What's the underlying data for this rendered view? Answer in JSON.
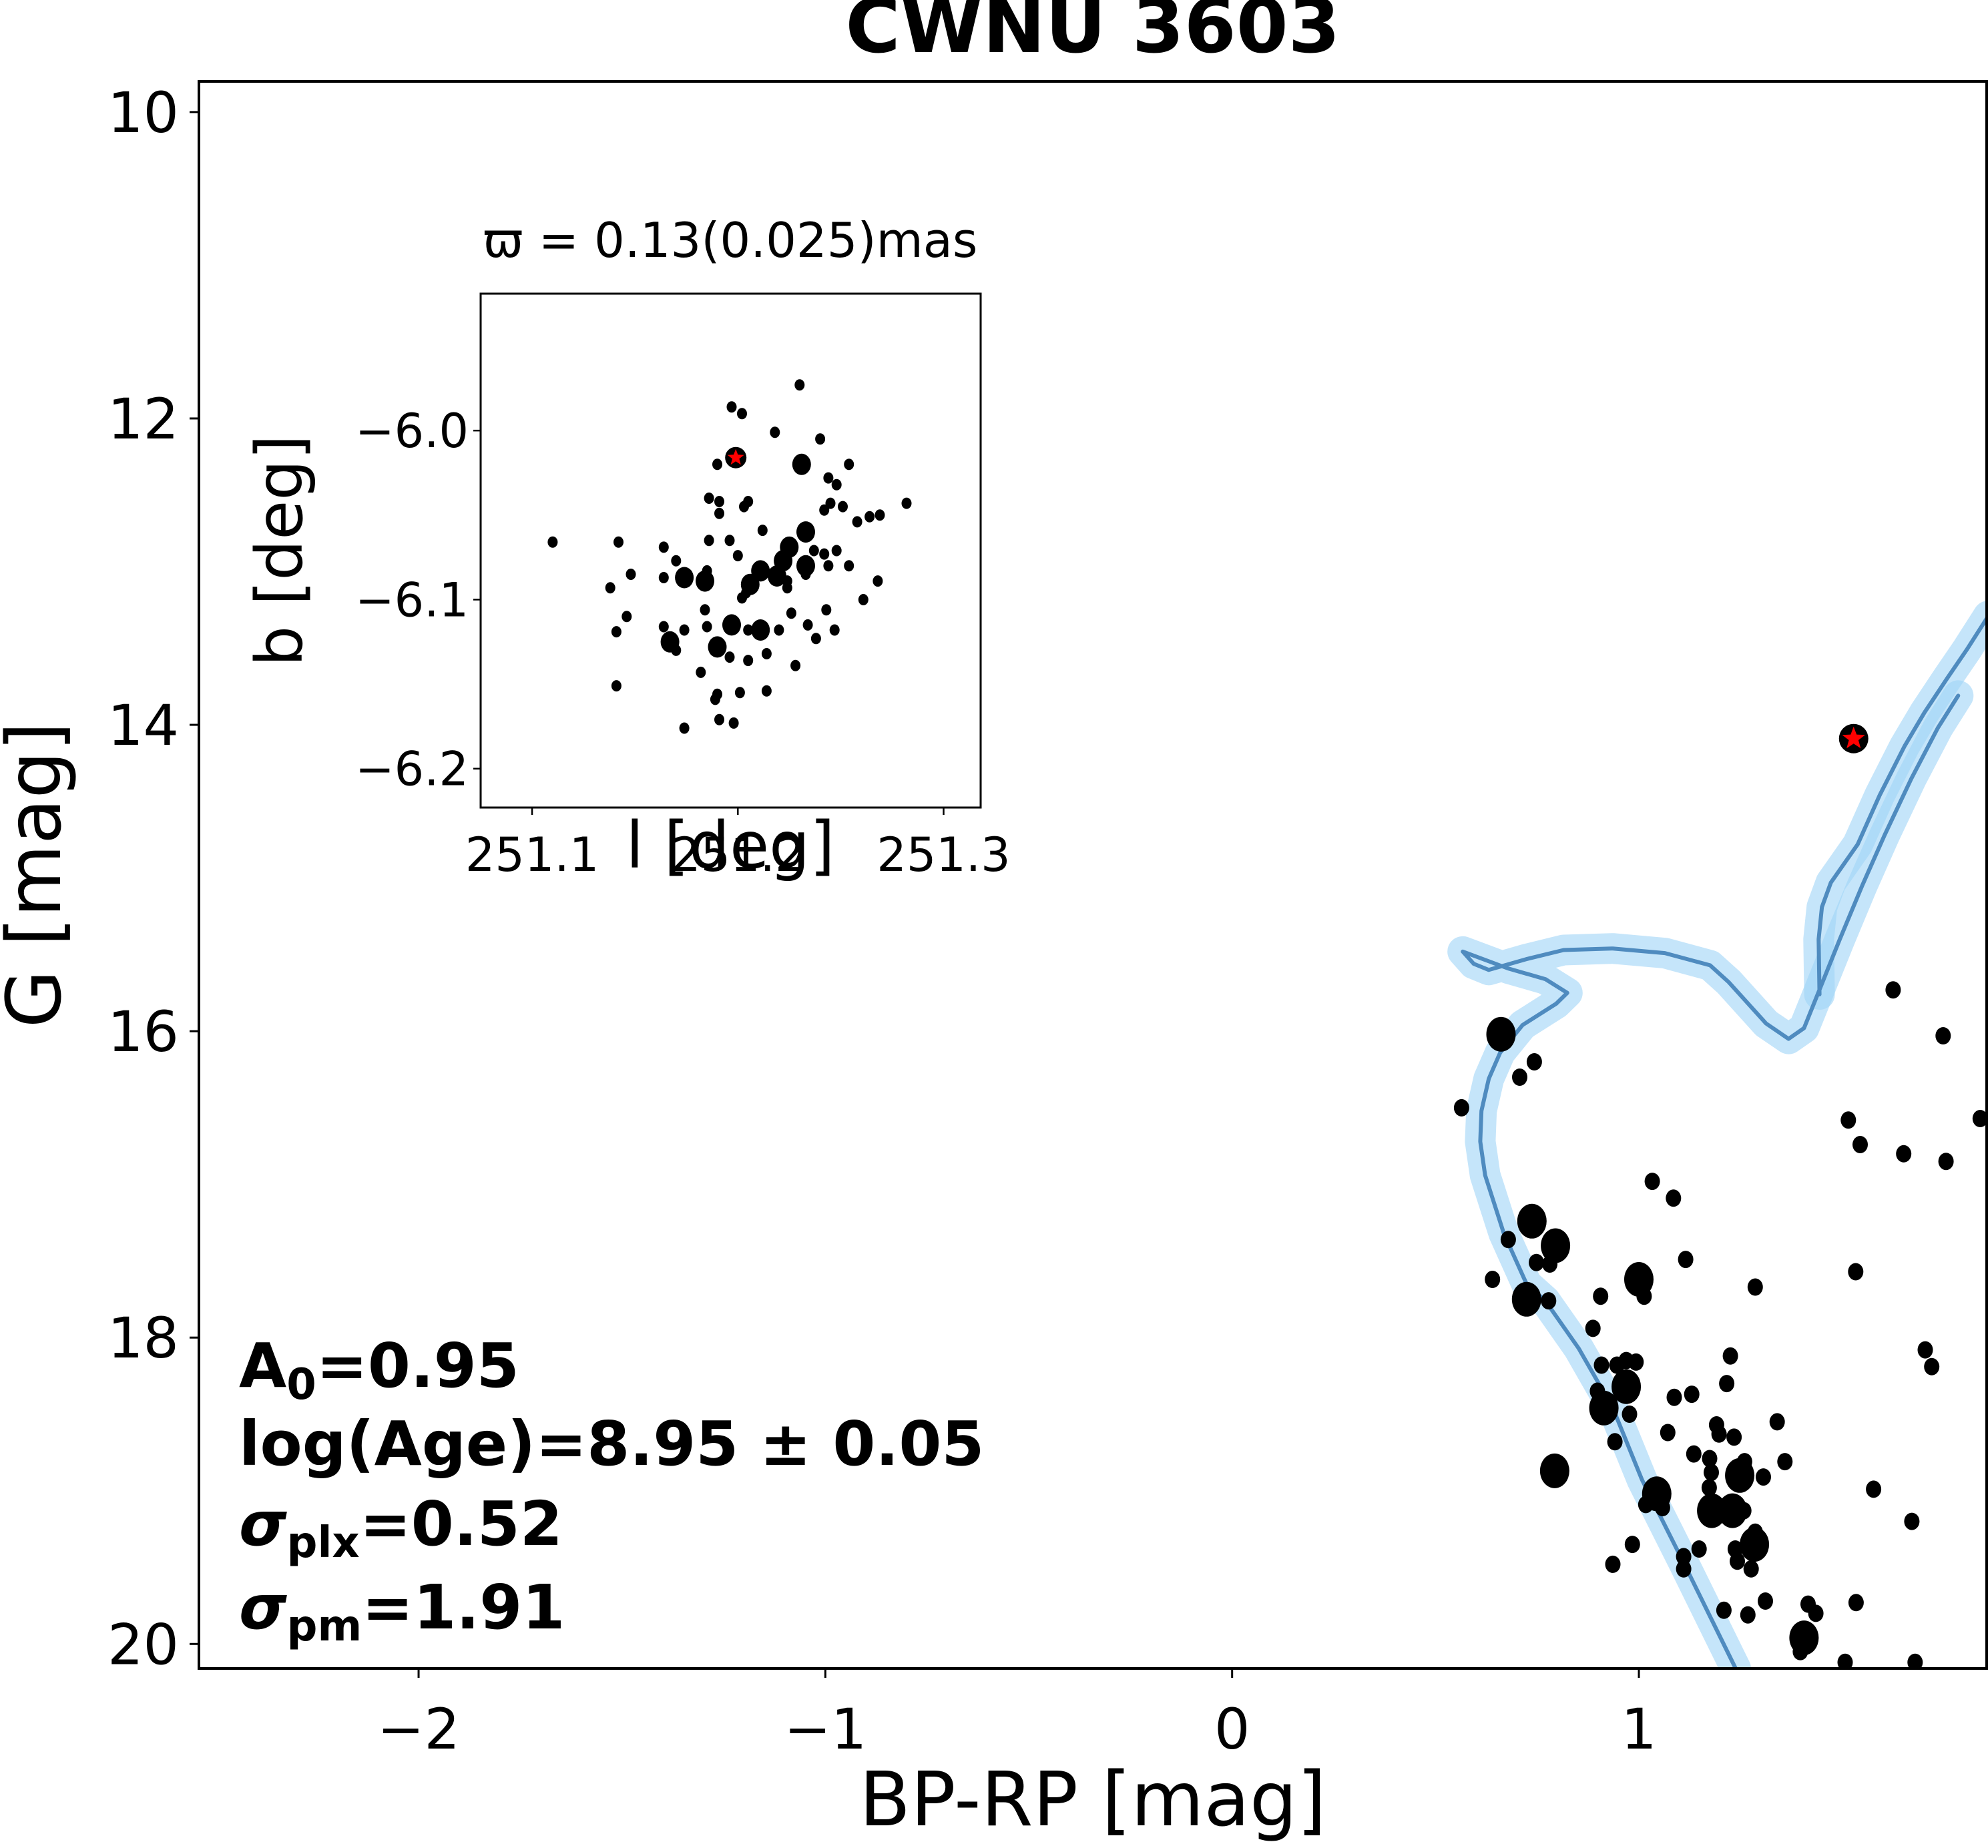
{
  "chart_data": [
    {
      "id": "cmd",
      "type": "scatter",
      "title": "CWNU 3603",
      "xlabel": "BP-RP [mag]",
      "ylabel": "G [mag]",
      "xlim": [
        -2.54,
        1.855
      ],
      "ylim": [
        20.16,
        9.8
      ],
      "y_inverted": true,
      "xticks": [
        -2,
        -1,
        0,
        1
      ],
      "xtick_labels": [
        "−2",
        "−1",
        "0",
        "1"
      ],
      "yticks": [
        10,
        12,
        14,
        16,
        18,
        20
      ],
      "ytick_labels": [
        "10",
        "12",
        "14",
        "16",
        "18",
        "20"
      ],
      "grid": false,
      "annotations": {
        "A0": {
          "label": "A",
          "sub": "0",
          "value": "=0.95"
        },
        "logAge": {
          "text": "log(Age)=8.95 ± 0.05"
        },
        "sigma_plx": {
          "label": "σ",
          "sub": "plx",
          "value": "=0.52"
        },
        "sigma_pm": {
          "label": "σ",
          "sub": "pm",
          "value": "=1.91"
        }
      },
      "colors": {
        "points": "#000000",
        "isochrone": "#4f8bbf",
        "band": "#9fd3f7",
        "highlight": "#ff0000"
      },
      "points": [
        {
          "x": 0.661,
          "y": 16.02,
          "s": "L"
        },
        {
          "x": 0.743,
          "y": 16.2,
          "s": "S"
        },
        {
          "x": 0.707,
          "y": 16.3,
          "s": "S"
        },
        {
          "x": 0.564,
          "y": 16.5,
          "s": "S"
        },
        {
          "x": 1.625,
          "y": 15.73,
          "s": "S"
        },
        {
          "x": 1.748,
          "y": 16.03,
          "s": "S"
        },
        {
          "x": 1.515,
          "y": 16.58,
          "s": "S"
        },
        {
          "x": 1.839,
          "y": 16.57,
          "s": "S"
        },
        {
          "x": 1.544,
          "y": 16.74,
          "s": "S"
        },
        {
          "x": 1.651,
          "y": 16.8,
          "s": "S"
        },
        {
          "x": 1.755,
          "y": 16.85,
          "s": "S"
        },
        {
          "x": 1.033,
          "y": 16.98,
          "s": "S"
        },
        {
          "x": 1.085,
          "y": 17.09,
          "s": "S"
        },
        {
          "x": 0.737,
          "y": 17.24,
          "s": "L"
        },
        {
          "x": 0.679,
          "y": 17.36,
          "s": "S"
        },
        {
          "x": 0.795,
          "y": 17.4,
          "s": "L"
        },
        {
          "x": 0.748,
          "y": 17.51,
          "s": "S"
        },
        {
          "x": 0.781,
          "y": 17.52,
          "s": "S"
        },
        {
          "x": 1.115,
          "y": 17.49,
          "s": "S"
        },
        {
          "x": 0.64,
          "y": 17.62,
          "s": "S"
        },
        {
          "x": 1.0,
          "y": 17.62,
          "s": "L"
        },
        {
          "x": 1.013,
          "y": 17.73,
          "s": "S"
        },
        {
          "x": 1.286,
          "y": 17.67,
          "s": "S"
        },
        {
          "x": 1.533,
          "y": 17.57,
          "s": "S"
        },
        {
          "x": 0.724,
          "y": 17.75,
          "s": "L"
        },
        {
          "x": 0.778,
          "y": 17.76,
          "s": "S"
        },
        {
          "x": 0.906,
          "y": 17.73,
          "s": "S"
        },
        {
          "x": 0.887,
          "y": 17.94,
          "s": "S"
        },
        {
          "x": 1.704,
          "y": 18.08,
          "s": "S"
        },
        {
          "x": 1.72,
          "y": 18.19,
          "s": "S"
        },
        {
          "x": 1.225,
          "y": 18.12,
          "s": "S"
        },
        {
          "x": 0.908,
          "y": 18.18,
          "s": "S"
        },
        {
          "x": 0.946,
          "y": 18.18,
          "s": "S"
        },
        {
          "x": 0.969,
          "y": 18.15,
          "s": "S"
        },
        {
          "x": 0.993,
          "y": 18.16,
          "s": "S"
        },
        {
          "x": 0.969,
          "y": 18.32,
          "s": "L"
        },
        {
          "x": 0.898,
          "y": 18.35,
          "s": "S"
        },
        {
          "x": 0.914,
          "y": 18.46,
          "s": "L"
        },
        {
          "x": 0.977,
          "y": 18.5,
          "s": "S"
        },
        {
          "x": 1.087,
          "y": 18.39,
          "s": "S"
        },
        {
          "x": 1.13,
          "y": 18.37,
          "s": "S"
        },
        {
          "x": 1.216,
          "y": 18.3,
          "s": "S"
        },
        {
          "x": 1.34,
          "y": 18.55,
          "s": "S"
        },
        {
          "x": 1.071,
          "y": 18.62,
          "s": "S"
        },
        {
          "x": 1.191,
          "y": 18.57,
          "s": "S"
        },
        {
          "x": 1.197,
          "y": 18.63,
          "s": "S"
        },
        {
          "x": 1.234,
          "y": 18.65,
          "s": "S"
        },
        {
          "x": 0.941,
          "y": 18.68,
          "s": "S"
        },
        {
          "x": 1.135,
          "y": 18.76,
          "s": "S"
        },
        {
          "x": 1.174,
          "y": 18.79,
          "s": "S"
        },
        {
          "x": 1.26,
          "y": 18.81,
          "s": "S"
        },
        {
          "x": 1.359,
          "y": 18.81,
          "s": "S"
        },
        {
          "x": 0.793,
          "y": 18.87,
          "s": "L"
        },
        {
          "x": 1.178,
          "y": 18.88,
          "s": "S"
        },
        {
          "x": 1.248,
          "y": 18.9,
          "s": "L"
        },
        {
          "x": 1.306,
          "y": 18.91,
          "s": "S"
        },
        {
          "x": 1.577,
          "y": 18.99,
          "s": "S"
        },
        {
          "x": 1.173,
          "y": 18.98,
          "s": "S"
        },
        {
          "x": 1.044,
          "y": 19.02,
          "s": "L"
        },
        {
          "x": 1.017,
          "y": 19.09,
          "s": "S"
        },
        {
          "x": 1.058,
          "y": 19.11,
          "s": "S"
        },
        {
          "x": 1.179,
          "y": 19.13,
          "s": "L"
        },
        {
          "x": 1.23,
          "y": 19.13,
          "s": "L"
        },
        {
          "x": 1.258,
          "y": 19.13,
          "s": "S"
        },
        {
          "x": 1.671,
          "y": 19.2,
          "s": "S"
        },
        {
          "x": 1.286,
          "y": 19.27,
          "s": "S"
        },
        {
          "x": 1.284,
          "y": 19.35,
          "s": "L"
        },
        {
          "x": 1.237,
          "y": 19.38,
          "s": "S"
        },
        {
          "x": 0.984,
          "y": 19.35,
          "s": "S"
        },
        {
          "x": 1.148,
          "y": 19.38,
          "s": "S"
        },
        {
          "x": 1.11,
          "y": 19.43,
          "s": "S"
        },
        {
          "x": 1.242,
          "y": 19.46,
          "s": "S"
        },
        {
          "x": 0.936,
          "y": 19.48,
          "s": "S"
        },
        {
          "x": 1.11,
          "y": 19.51,
          "s": "S"
        },
        {
          "x": 1.276,
          "y": 19.51,
          "s": "S"
        },
        {
          "x": 1.311,
          "y": 19.72,
          "s": "S"
        },
        {
          "x": 1.209,
          "y": 19.78,
          "s": "S"
        },
        {
          "x": 1.268,
          "y": 19.81,
          "s": "S"
        },
        {
          "x": 1.416,
          "y": 19.74,
          "s": "S"
        },
        {
          "x": 1.435,
          "y": 19.8,
          "s": "S"
        },
        {
          "x": 1.534,
          "y": 19.73,
          "s": "S"
        },
        {
          "x": 1.406,
          "y": 19.96,
          "s": "L"
        },
        {
          "x": 1.397,
          "y": 20.05,
          "s": "S"
        },
        {
          "x": 1.507,
          "y": 20.12,
          "s": "S"
        },
        {
          "x": 1.679,
          "y": 20.12,
          "s": "S"
        }
      ],
      "highlight_star": {
        "x": 1.528,
        "y": 14.09
      },
      "isochrone": [
        [
          1.238,
          20.16
        ],
        [
          1.11,
          19.47
        ],
        [
          1.008,
          18.93
        ],
        [
          0.936,
          18.46
        ],
        [
          0.852,
          18.07
        ],
        [
          0.77,
          17.76
        ],
        [
          0.724,
          17.65
        ],
        [
          0.668,
          17.32
        ],
        [
          0.622,
          16.94
        ],
        [
          0.61,
          16.72
        ],
        [
          0.613,
          16.52
        ],
        [
          0.631,
          16.31
        ],
        [
          0.659,
          16.14
        ],
        [
          0.714,
          15.96
        ],
        [
          0.797,
          15.82
        ],
        [
          0.824,
          15.75
        ],
        [
          0.77,
          15.66
        ],
        [
          0.678,
          15.59
        ],
        [
          0.567,
          15.48
        ],
        [
          0.594,
          15.56
        ],
        [
          0.631,
          15.6
        ],
        [
          0.723,
          15.53
        ],
        [
          0.815,
          15.47
        ],
        [
          0.936,
          15.46
        ],
        [
          1.064,
          15.49
        ],
        [
          1.175,
          15.57
        ],
        [
          1.221,
          15.68
        ],
        [
          1.313,
          15.95
        ],
        [
          1.368,
          16.05
        ],
        [
          1.406,
          15.98
        ],
        [
          1.45,
          15.69
        ],
        [
          1.494,
          15.4
        ],
        [
          1.549,
          15.05
        ],
        [
          1.604,
          14.72
        ],
        [
          1.67,
          14.35
        ],
        [
          1.735,
          14.02
        ],
        [
          1.785,
          13.81
        ]
      ],
      "isochrone_branch": [
        [
          1.444,
          15.76
        ],
        [
          1.442,
          15.4
        ],
        [
          1.45,
          15.19
        ],
        [
          1.472,
          15.03
        ],
        [
          1.538,
          14.78
        ],
        [
          1.592,
          14.46
        ],
        [
          1.653,
          14.14
        ],
        [
          1.702,
          13.92
        ],
        [
          1.757,
          13.7
        ],
        [
          1.806,
          13.51
        ],
        [
          1.859,
          13.29
        ]
      ],
      "band_halfwidth_mag": 0.09
    },
    {
      "id": "inset",
      "type": "scatter",
      "title": "ϖ = 0.13(0.025)mas",
      "xlabel": "l [deg]",
      "ylabel": "b [deg]",
      "xlim": [
        251.075,
        251.318
      ],
      "ylim": [
        -6.223,
        -5.919
      ],
      "xticks": [
        251.1,
        251.2,
        251.3
      ],
      "xtick_labels": [
        "251.1",
        "251.2",
        "251.3"
      ],
      "yticks": [
        -6.0,
        -6.1,
        -6.2
      ],
      "ytick_labels": [
        "−6.0",
        "−6.1",
        "−6.2"
      ],
      "grid": false,
      "points": [
        {
          "x": 251.23,
          "y": -5.973,
          "s": "S"
        },
        {
          "x": 251.197,
          "y": -5.986,
          "s": "S"
        },
        {
          "x": 251.202,
          "y": -5.99,
          "s": "S"
        },
        {
          "x": 251.218,
          "y": -6.001,
          "s": "S"
        },
        {
          "x": 251.24,
          "y": -6.005,
          "s": "S"
        },
        {
          "x": 251.19,
          "y": -6.02,
          "s": "S"
        },
        {
          "x": 251.231,
          "y": -6.02,
          "s": "L"
        },
        {
          "x": 251.254,
          "y": -6.02,
          "s": "S"
        },
        {
          "x": 251.244,
          "y": -6.028,
          "s": "S"
        },
        {
          "x": 251.248,
          "y": -6.032,
          "s": "S"
        },
        {
          "x": 251.186,
          "y": -6.04,
          "s": "S"
        },
        {
          "x": 251.191,
          "y": -6.042,
          "s": "S"
        },
        {
          "x": 251.205,
          "y": -6.042,
          "s": "S"
        },
        {
          "x": 251.203,
          "y": -6.045,
          "s": "S"
        },
        {
          "x": 251.191,
          "y": -6.049,
          "s": "S"
        },
        {
          "x": 251.245,
          "y": -6.043,
          "s": "S"
        },
        {
          "x": 251.242,
          "y": -6.047,
          "s": "S"
        },
        {
          "x": 251.251,
          "y": -6.045,
          "s": "S"
        },
        {
          "x": 251.282,
          "y": -6.043,
          "s": "S"
        },
        {
          "x": 251.258,
          "y": -6.054,
          "s": "S"
        },
        {
          "x": 251.264,
          "y": -6.051,
          "s": "S"
        },
        {
          "x": 251.269,
          "y": -6.05,
          "s": "S"
        },
        {
          "x": 251.212,
          "y": -6.059,
          "s": "S"
        },
        {
          "x": 251.233,
          "y": -6.06,
          "s": "L"
        },
        {
          "x": 251.11,
          "y": -6.066,
          "s": "S"
        },
        {
          "x": 251.142,
          "y": -6.066,
          "s": "S"
        },
        {
          "x": 251.186,
          "y": -6.065,
          "s": "S"
        },
        {
          "x": 251.196,
          "y": -6.065,
          "s": "S"
        },
        {
          "x": 251.2,
          "y": -6.074,
          "s": "S"
        },
        {
          "x": 251.164,
          "y": -6.069,
          "s": "S"
        },
        {
          "x": 251.17,
          "y": -6.077,
          "s": "S"
        },
        {
          "x": 251.225,
          "y": -6.069,
          "s": "L"
        },
        {
          "x": 251.222,
          "y": -6.077,
          "s": "L"
        },
        {
          "x": 251.233,
          "y": -6.08,
          "s": "L"
        },
        {
          "x": 251.237,
          "y": -6.071,
          "s": "S"
        },
        {
          "x": 251.242,
          "y": -6.073,
          "s": "S"
        },
        {
          "x": 251.248,
          "y": -6.071,
          "s": "S"
        },
        {
          "x": 251.254,
          "y": -6.08,
          "s": "S"
        },
        {
          "x": 251.244,
          "y": -6.08,
          "s": "S"
        },
        {
          "x": 251.233,
          "y": -6.085,
          "s": "S"
        },
        {
          "x": 251.148,
          "y": -6.085,
          "s": "S"
        },
        {
          "x": 251.164,
          "y": -6.087,
          "s": "S"
        },
        {
          "x": 251.174,
          "y": -6.087,
          "s": "L"
        },
        {
          "x": 251.184,
          "y": -6.089,
          "s": "L"
        },
        {
          "x": 251.185,
          "y": -6.083,
          "s": "S"
        },
        {
          "x": 251.211,
          "y": -6.083,
          "s": "L"
        },
        {
          "x": 251.219,
          "y": -6.086,
          "s": "L"
        },
        {
          "x": 251.224,
          "y": -6.089,
          "s": "S"
        },
        {
          "x": 251.206,
          "y": -6.091,
          "s": "L"
        },
        {
          "x": 251.204,
          "y": -6.096,
          "s": "S"
        },
        {
          "x": 251.202,
          "y": -6.099,
          "s": "S"
        },
        {
          "x": 251.224,
          "y": -6.093,
          "s": "S"
        },
        {
          "x": 251.138,
          "y": -6.093,
          "s": "S"
        },
        {
          "x": 251.268,
          "y": -6.089,
          "s": "S"
        },
        {
          "x": 251.261,
          "y": -6.1,
          "s": "S"
        },
        {
          "x": 251.184,
          "y": -6.106,
          "s": "S"
        },
        {
          "x": 251.226,
          "y": -6.108,
          "s": "S"
        },
        {
          "x": 251.243,
          "y": -6.106,
          "s": "S"
        },
        {
          "x": 251.146,
          "y": -6.11,
          "s": "S"
        },
        {
          "x": 251.164,
          "y": -6.116,
          "s": "S"
        },
        {
          "x": 251.174,
          "y": -6.118,
          "s": "S"
        },
        {
          "x": 251.185,
          "y": -6.116,
          "s": "S"
        },
        {
          "x": 251.197,
          "y": -6.115,
          "s": "L"
        },
        {
          "x": 251.211,
          "y": -6.118,
          "s": "L"
        },
        {
          "x": 251.205,
          "y": -6.118,
          "s": "S"
        },
        {
          "x": 251.22,
          "y": -6.118,
          "s": "S"
        },
        {
          "x": 251.234,
          "y": -6.115,
          "s": "S"
        },
        {
          "x": 251.247,
          "y": -6.118,
          "s": "S"
        },
        {
          "x": 251.238,
          "y": -6.123,
          "s": "S"
        },
        {
          "x": 251.141,
          "y": -6.119,
          "s": "S"
        },
        {
          "x": 251.167,
          "y": -6.125,
          "s": "L"
        },
        {
          "x": 251.17,
          "y": -6.13,
          "s": "S"
        },
        {
          "x": 251.19,
          "y": -6.128,
          "s": "L"
        },
        {
          "x": 251.196,
          "y": -6.134,
          "s": "S"
        },
        {
          "x": 251.205,
          "y": -6.136,
          "s": "S"
        },
        {
          "x": 251.214,
          "y": -6.132,
          "s": "S"
        },
        {
          "x": 251.228,
          "y": -6.139,
          "s": "S"
        },
        {
          "x": 251.182,
          "y": -6.143,
          "s": "S"
        },
        {
          "x": 251.141,
          "y": -6.151,
          "s": "S"
        },
        {
          "x": 251.19,
          "y": -6.156,
          "s": "S"
        },
        {
          "x": 251.189,
          "y": -6.159,
          "s": "S"
        },
        {
          "x": 251.201,
          "y": -6.155,
          "s": "S"
        },
        {
          "x": 251.214,
          "y": -6.154,
          "s": "S"
        },
        {
          "x": 251.191,
          "y": -6.171,
          "s": "S"
        },
        {
          "x": 251.198,
          "y": -6.173,
          "s": "S"
        },
        {
          "x": 251.174,
          "y": -6.176,
          "s": "S"
        }
      ],
      "highlight_star": {
        "x": 251.199,
        "y": -6.016
      }
    }
  ]
}
